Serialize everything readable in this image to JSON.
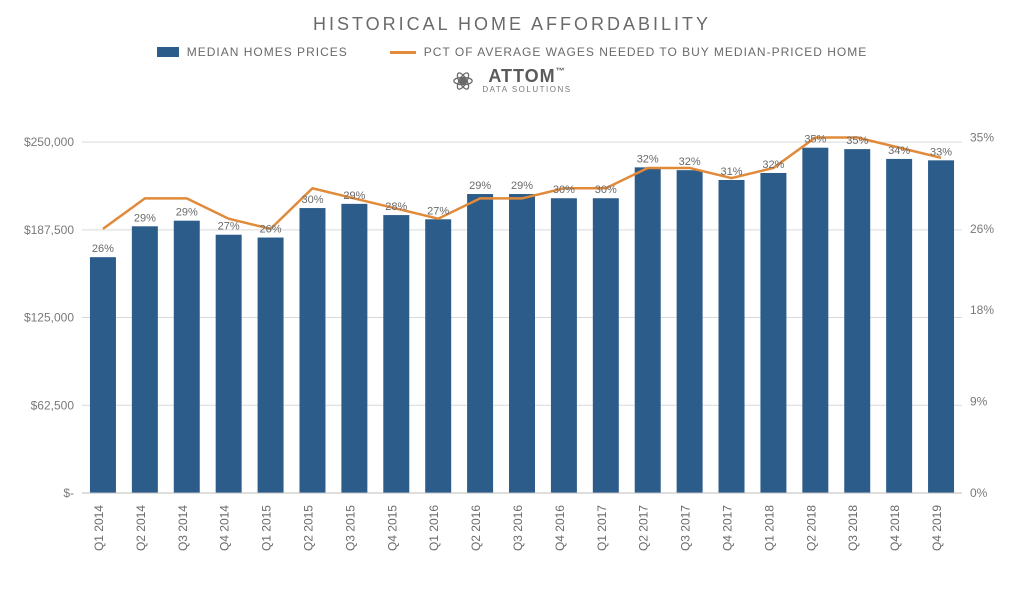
{
  "title": "HISTORICAL HOME AFFORDABILITY",
  "legend": {
    "bars": "MEDIAN HOMES PRICES",
    "line": "PCT OF AVERAGE WAGES NEEDED TO BUY MEDIAN-PRICED HOME"
  },
  "brand": {
    "name": "ATTOM",
    "sub": "DATA SOLUTIONS",
    "tm": "™"
  },
  "chart": {
    "type": "bar+line",
    "background_color": "#ffffff",
    "grid_color": "#d9d9d9",
    "axis_text_color": "#7a7a7a",
    "bar_color": "#2b5c8a",
    "line_color": "#e08a3a",
    "line_width": 2.5,
    "bar_width_ratio": 0.62,
    "y_left": {
      "min": 0,
      "max": 275000,
      "ticks": [
        0,
        62500,
        125000,
        187500,
        250000
      ],
      "tick_labels": [
        "$-",
        "$62,500",
        "$125,000",
        "$187,500",
        "$250,000"
      ]
    },
    "y_right": {
      "min": 0,
      "max": 38,
      "ticks": [
        0,
        9,
        18,
        26,
        35
      ],
      "tick_labels": [
        "0%",
        "9%",
        "18%",
        "26%",
        "35%"
      ]
    },
    "categories": [
      "Q1 2014",
      "Q2 2014",
      "Q3 2014",
      "Q4 2014",
      "Q1 2015",
      "Q2 2015",
      "Q3 2015",
      "Q4 2015",
      "Q1 2016",
      "Q2 2016",
      "Q3 2016",
      "Q4 2016",
      "Q1 2017",
      "Q2 2017",
      "Q3 2017",
      "Q4 2017",
      "Q1 2018",
      "Q2 2018",
      "Q3 2018",
      "Q4 2018",
      "Q4 2019"
    ],
    "bar_values": [
      168000,
      190000,
      194000,
      184000,
      182000,
      203000,
      206000,
      198000,
      195000,
      213000,
      213000,
      210000,
      210000,
      232000,
      230000,
      223000,
      228000,
      246000,
      245000,
      238000,
      237000
    ],
    "line_values_pct": [
      26,
      29,
      29,
      27,
      26,
      30,
      29,
      28,
      27,
      29,
      29,
      30,
      30,
      32,
      32,
      31,
      32,
      35,
      35,
      34,
      33
    ],
    "bar_top_labels": [
      "26%",
      "29%",
      "29%",
      "27%",
      "26%",
      "30%",
      "29%",
      "28%",
      "27%",
      "29%",
      "29%",
      "30%",
      "30%",
      "32%",
      "32%",
      "31%",
      "32%",
      "35%",
      "35%",
      "34%",
      "33%"
    ]
  }
}
